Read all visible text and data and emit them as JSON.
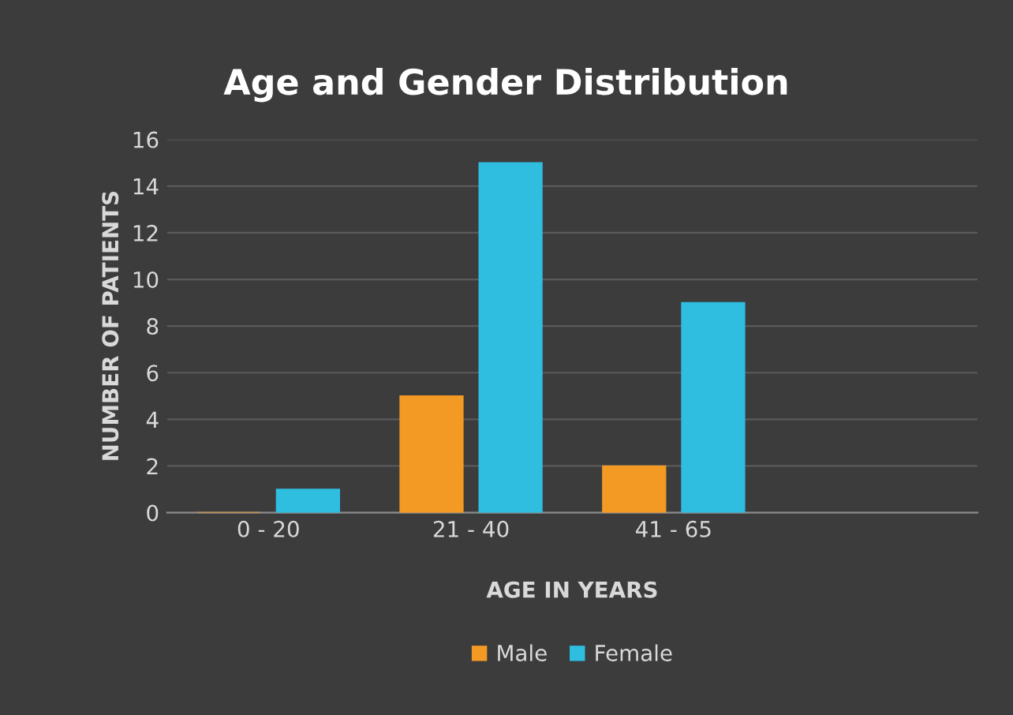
{
  "chart_data": {
    "type": "bar",
    "title": "Age and Gender Distribution",
    "xlabel": "AGE IN YEARS",
    "ylabel": "NUMBER OF PATIENTS",
    "categories": [
      "0 - 20",
      "21 - 40",
      "41 - 65",
      null
    ],
    "series": [
      {
        "name": "Male",
        "color": "#f39a24",
        "values": [
          0,
          5,
          2,
          null
        ]
      },
      {
        "name": "Female",
        "color": "#2fbde0",
        "values": [
          1,
          15,
          9,
          null
        ]
      }
    ],
    "ylim": [
      0,
      16
    ],
    "yticks": [
      0,
      2,
      4,
      6,
      8,
      10,
      12,
      14,
      16
    ],
    "grid": "y",
    "legend": "bottom"
  }
}
